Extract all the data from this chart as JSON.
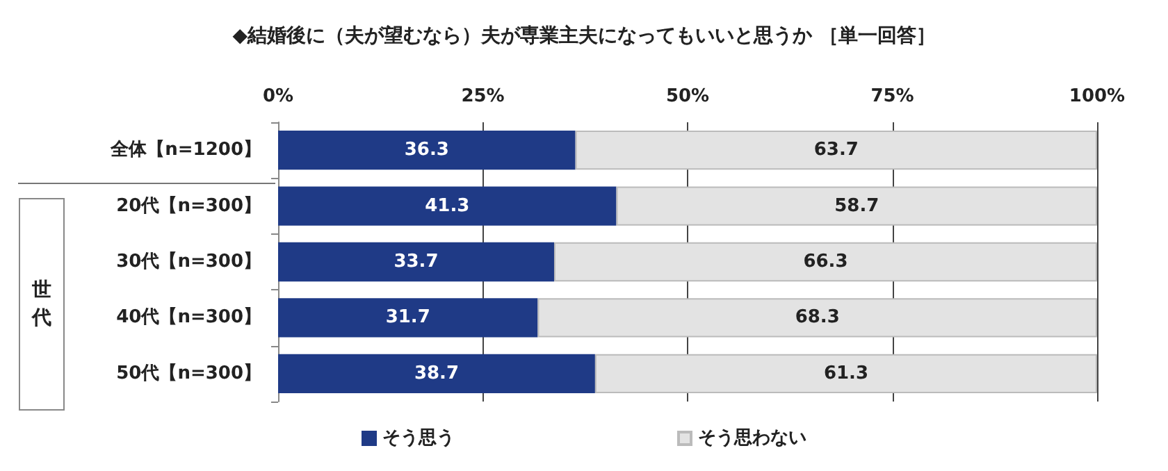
{
  "chart_data": {
    "type": "bar",
    "orientation": "horizontal",
    "stacked": true,
    "title": "◆結婚後に（夫が望むなら）夫が専業主夫になってもいいと思うか ［単一回答］",
    "categories": [
      "全体【n=1200】",
      "20代【n=300】",
      "30代【n=300】",
      "40代【n=300】",
      "50代【n=300】"
    ],
    "series": [
      {
        "name": "そう思う",
        "color": "#1f3a86",
        "values": [
          36.3,
          41.3,
          33.7,
          31.7,
          38.7
        ]
      },
      {
        "name": "そう思わない",
        "color": "#e3e3e3",
        "values": [
          63.7,
          58.7,
          66.3,
          68.3,
          61.3
        ]
      }
    ],
    "xlim": [
      0,
      100
    ],
    "xticks": [
      {
        "value": 0,
        "label": "0%"
      },
      {
        "value": 25,
        "label": "25%"
      },
      {
        "value": 50,
        "label": "50%"
      },
      {
        "value": 75,
        "label": "75%"
      },
      {
        "value": 100,
        "label": "100%"
      }
    ],
    "grid": "x",
    "legend": "bottom",
    "data_labels": true,
    "annotations": [
      "世代"
    ]
  }
}
